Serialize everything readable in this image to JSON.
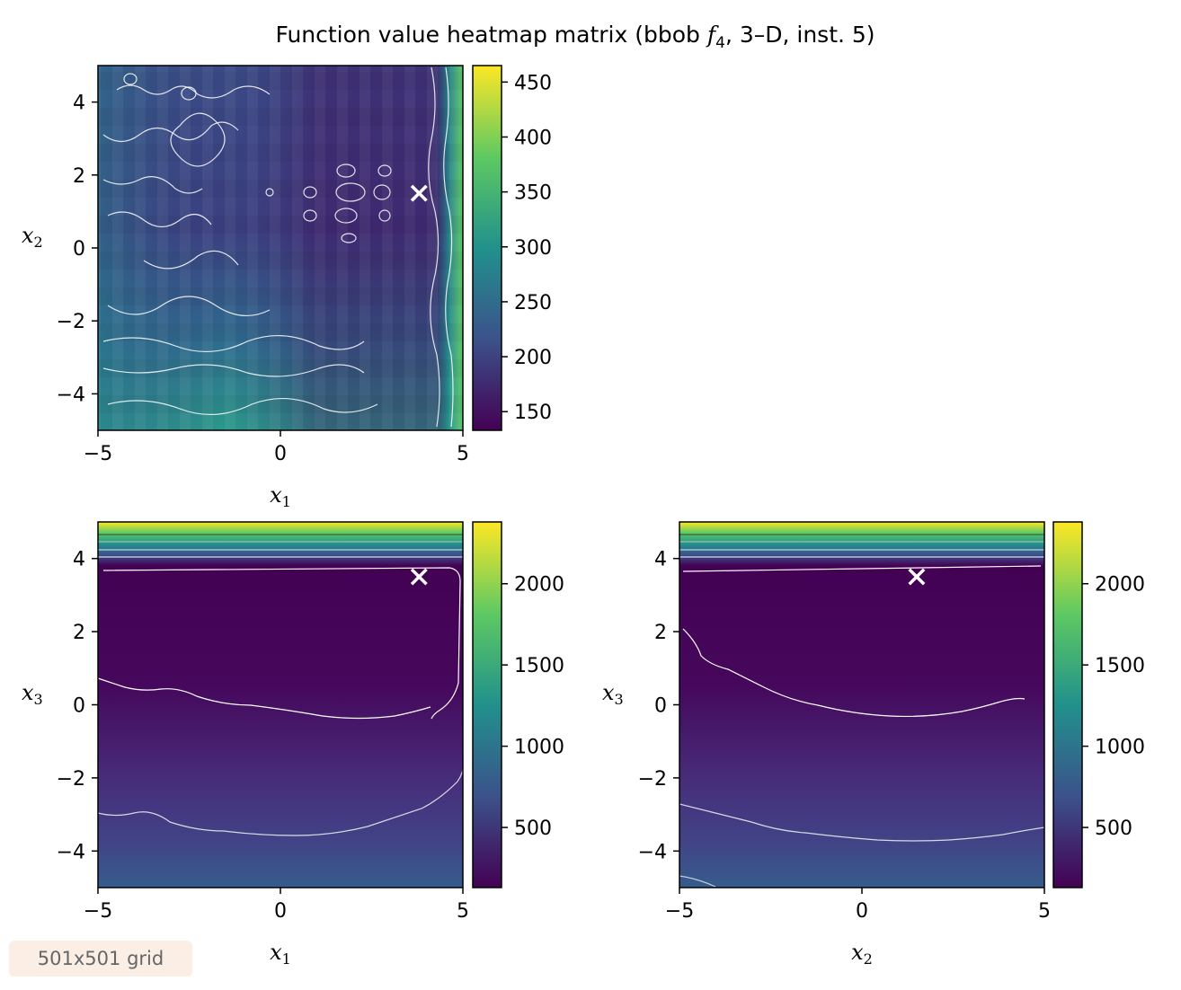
{
  "figure": {
    "title": "Function value heatmap matrix (bbob f4, 3–D, inst. 5)",
    "title_parts": {
      "prefix": "Function value heatmap matrix (bbob ",
      "f": "f",
      "sub": "4",
      "suffix": ", 3–D, inst. 5)"
    },
    "grid_badge": "501x501 grid",
    "colormap": "viridis",
    "colormap_stops": [
      "#440154",
      "#3b528b",
      "#21918c",
      "#5ec962",
      "#fde725"
    ]
  },
  "chart_data": [
    {
      "type": "heatmap",
      "title": "",
      "x_var": "x",
      "x_sub": "1",
      "y_var": "x",
      "y_sub": "2",
      "xlim": [
        -5,
        5
      ],
      "ylim": [
        -5,
        5
      ],
      "xticks": [
        -5,
        0,
        5
      ],
      "yticks": [
        -4,
        -2,
        0,
        2,
        4
      ],
      "xtick_labels": [
        "−5",
        "0",
        "5"
      ],
      "ytick_labels": [
        "−4",
        "−2",
        "0",
        "2",
        "4"
      ],
      "colorbar": {
        "range": [
          133,
          465
        ],
        "ticks": [
          150,
          200,
          250,
          300,
          350,
          400,
          450
        ],
        "tick_labels": [
          "150",
          "200",
          "250",
          "300",
          "350",
          "400",
          "450"
        ]
      },
      "optimum_marker": {
        "x": 3.8,
        "y": 1.5
      },
      "contours": true
    },
    {
      "type": "heatmap",
      "title": "",
      "x_var": "x",
      "x_sub": "1",
      "y_var": "x",
      "y_sub": "3",
      "xlim": [
        -5,
        5
      ],
      "ylim": [
        -5,
        5
      ],
      "xticks": [
        -5,
        0,
        5
      ],
      "yticks": [
        -4,
        -2,
        0,
        2,
        4
      ],
      "xtick_labels": [
        "−5",
        "0",
        "5"
      ],
      "ytick_labels": [
        "−4",
        "−2",
        "0",
        "2",
        "4"
      ],
      "colorbar": {
        "range": [
          130,
          2380
        ],
        "ticks": [
          500,
          1000,
          1500,
          2000
        ],
        "tick_labels": [
          "500",
          "1000",
          "1500",
          "2000"
        ]
      },
      "optimum_marker": {
        "x": 3.8,
        "y": 3.5
      },
      "contours": true
    },
    {
      "type": "heatmap",
      "title": "",
      "x_var": "x",
      "x_sub": "2",
      "y_var": "x",
      "y_sub": "3",
      "xlim": [
        -5,
        5
      ],
      "ylim": [
        -5,
        5
      ],
      "xticks": [
        -5,
        0,
        5
      ],
      "yticks": [
        -4,
        -2,
        0,
        2,
        4
      ],
      "xtick_labels": [
        "−5",
        "0",
        "5"
      ],
      "ytick_labels": [
        "−4",
        "−2",
        "0",
        "2",
        "4"
      ],
      "colorbar": {
        "range": [
          130,
          2380
        ],
        "ticks": [
          500,
          1000,
          1500,
          2000
        ],
        "tick_labels": [
          "500",
          "1000",
          "1500",
          "2000"
        ]
      },
      "optimum_marker": {
        "x": 1.5,
        "y": 3.5
      },
      "contours": true
    }
  ]
}
